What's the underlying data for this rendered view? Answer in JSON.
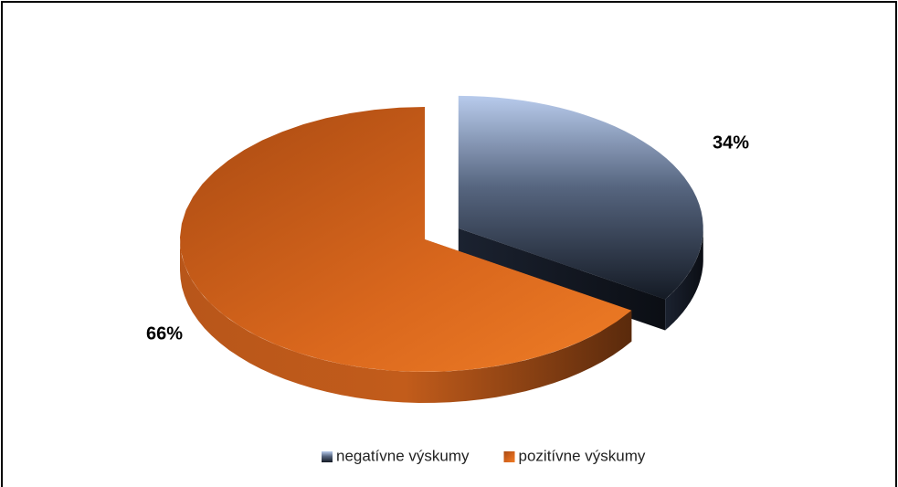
{
  "chart_data": {
    "type": "pie",
    "categories": [
      "negatívne výskumy",
      "pozitívne výskumy"
    ],
    "values": [
      34,
      66
    ],
    "value_labels": [
      "34%",
      "66%"
    ],
    "colors": [
      "#2f3f5c",
      "#d8661c"
    ],
    "legend": "bottom"
  }
}
